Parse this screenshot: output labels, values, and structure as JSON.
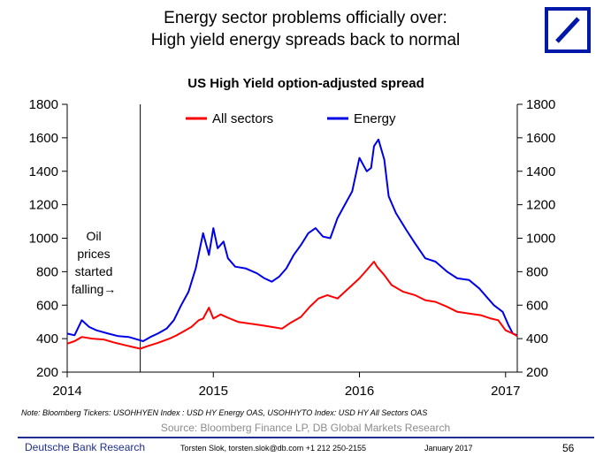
{
  "header": {
    "line1": "Energy sector problems officially over:",
    "line2": "High yield energy spreads back to normal"
  },
  "logo": {
    "name": "deutsche-bank-logo",
    "color": "#0018a8"
  },
  "chart_data": {
    "type": "line",
    "title": "US High Yield option-adjusted spread",
    "x_ticks": [
      2014,
      2015,
      2016,
      2017
    ],
    "xlim": [
      2014.0,
      2017.08
    ],
    "y_ticks": [
      200,
      400,
      600,
      800,
      1000,
      1200,
      1400,
      1600,
      1800
    ],
    "ylim": [
      200,
      1800
    ],
    "secondary_y_ticks": [
      200,
      400,
      600,
      800,
      1000,
      1200,
      1400,
      1600,
      1800
    ],
    "grid": false,
    "legend_position": "top",
    "annotation": {
      "lines": [
        "Oil",
        "prices",
        "started",
        "falling"
      ],
      "arrow": "→",
      "x": 2014.5
    },
    "series": [
      {
        "name": "All sectors",
        "color": "#ff0000",
        "points": [
          [
            2014.0,
            370
          ],
          [
            2014.05,
            385
          ],
          [
            2014.1,
            410
          ],
          [
            2014.17,
            400
          ],
          [
            2014.25,
            395
          ],
          [
            2014.33,
            375
          ],
          [
            2014.4,
            360
          ],
          [
            2014.45,
            350
          ],
          [
            2014.5,
            340
          ],
          [
            2014.55,
            355
          ],
          [
            2014.62,
            375
          ],
          [
            2014.7,
            400
          ],
          [
            2014.75,
            420
          ],
          [
            2014.8,
            445
          ],
          [
            2014.85,
            470
          ],
          [
            2014.9,
            510
          ],
          [
            2014.93,
            520
          ],
          [
            2014.97,
            585
          ],
          [
            2015.0,
            520
          ],
          [
            2015.05,
            545
          ],
          [
            2015.1,
            525
          ],
          [
            2015.17,
            500
          ],
          [
            2015.25,
            490
          ],
          [
            2015.33,
            480
          ],
          [
            2015.4,
            470
          ],
          [
            2015.47,
            460
          ],
          [
            2015.53,
            495
          ],
          [
            2015.6,
            530
          ],
          [
            2015.66,
            590
          ],
          [
            2015.72,
            640
          ],
          [
            2015.78,
            660
          ],
          [
            2015.85,
            640
          ],
          [
            2015.9,
            680
          ],
          [
            2015.95,
            720
          ],
          [
            2016.0,
            760
          ],
          [
            2016.05,
            810
          ],
          [
            2016.1,
            860
          ],
          [
            2016.12,
            830
          ],
          [
            2016.17,
            780
          ],
          [
            2016.22,
            720
          ],
          [
            2016.3,
            680
          ],
          [
            2016.38,
            660
          ],
          [
            2016.45,
            630
          ],
          [
            2016.52,
            620
          ],
          [
            2016.6,
            590
          ],
          [
            2016.67,
            560
          ],
          [
            2016.75,
            550
          ],
          [
            2016.83,
            540
          ],
          [
            2016.9,
            520
          ],
          [
            2016.95,
            510
          ],
          [
            2017.0,
            450
          ],
          [
            2017.05,
            430
          ],
          [
            2017.08,
            415
          ]
        ]
      },
      {
        "name": "Energy",
        "color": "#0000e6",
        "points": [
          [
            2014.0,
            430
          ],
          [
            2014.05,
            420
          ],
          [
            2014.1,
            510
          ],
          [
            2014.15,
            470
          ],
          [
            2014.2,
            450
          ],
          [
            2014.28,
            430
          ],
          [
            2014.35,
            415
          ],
          [
            2014.42,
            410
          ],
          [
            2014.48,
            395
          ],
          [
            2014.52,
            385
          ],
          [
            2014.57,
            410
          ],
          [
            2014.62,
            430
          ],
          [
            2014.68,
            460
          ],
          [
            2014.73,
            510
          ],
          [
            2014.78,
            600
          ],
          [
            2014.83,
            680
          ],
          [
            2014.88,
            820
          ],
          [
            2014.93,
            1030
          ],
          [
            2014.97,
            900
          ],
          [
            2015.0,
            1060
          ],
          [
            2015.03,
            940
          ],
          [
            2015.07,
            980
          ],
          [
            2015.1,
            880
          ],
          [
            2015.15,
            830
          ],
          [
            2015.22,
            820
          ],
          [
            2015.3,
            790
          ],
          [
            2015.35,
            760
          ],
          [
            2015.4,
            740
          ],
          [
            2015.45,
            770
          ],
          [
            2015.5,
            820
          ],
          [
            2015.55,
            900
          ],
          [
            2015.6,
            960
          ],
          [
            2015.65,
            1030
          ],
          [
            2015.7,
            1060
          ],
          [
            2015.75,
            1010
          ],
          [
            2015.8,
            1000
          ],
          [
            2015.85,
            1120
          ],
          [
            2015.9,
            1200
          ],
          [
            2015.95,
            1280
          ],
          [
            2016.0,
            1480
          ],
          [
            2016.05,
            1400
          ],
          [
            2016.08,
            1420
          ],
          [
            2016.1,
            1550
          ],
          [
            2016.13,
            1590
          ],
          [
            2016.17,
            1470
          ],
          [
            2016.2,
            1250
          ],
          [
            2016.25,
            1150
          ],
          [
            2016.32,
            1050
          ],
          [
            2016.38,
            970
          ],
          [
            2016.45,
            880
          ],
          [
            2016.52,
            860
          ],
          [
            2016.6,
            800
          ],
          [
            2016.67,
            760
          ],
          [
            2016.75,
            750
          ],
          [
            2016.82,
            700
          ],
          [
            2016.88,
            640
          ],
          [
            2016.92,
            600
          ],
          [
            2016.98,
            560
          ],
          [
            2017.02,
            480
          ],
          [
            2017.05,
            430
          ],
          [
            2017.08,
            420
          ]
        ]
      }
    ]
  },
  "note": "Note: Bloomberg Tickers: USOHHYEN Index : USD HY Energy OAS, USOHHYTO Index: USD HY All Sectors OAS",
  "source": "Source: Bloomberg Finance LP, DB Global Markets Research",
  "footer": {
    "brand": "Deutsche Bank Research",
    "contact": "Torsten Slok, torsten.slok@db.com  +1 212 250-2155",
    "date": "January 2017",
    "page": "56"
  }
}
